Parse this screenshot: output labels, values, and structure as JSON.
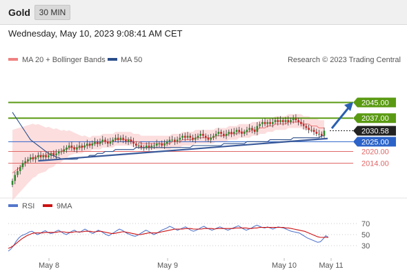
{
  "header": {
    "title": "Gold",
    "timeframe": "30 MIN",
    "datetime": "Wednesday, May 10, 2023 9:08:41 AM CET"
  },
  "colors": {
    "resistance": "#5a9a12",
    "current": "#222222",
    "pivot": "#2c63c9",
    "support": "#e06666",
    "ma20": "#f08080",
    "ma50": "#2a4d8a",
    "bollinger": "#fbd3d3",
    "rsi": "#5577cc",
    "rsi_ma": "#cc1111",
    "candle_up": "#2e8b2e",
    "candle_down": "#c62828"
  },
  "chart_data": [
    {
      "type": "candlestick",
      "legend": [
        {
          "name": "MA 20 + Bollinger Bands",
          "color": "#f08080"
        },
        {
          "name": "MA 50",
          "color": "#2a4d8a"
        }
      ],
      "source": "Research © 2023 Trading Central",
      "x_ticks": [
        "May 8",
        "May 9",
        "May 10",
        "May 11"
      ],
      "levels": [
        {
          "value": 2045.0,
          "label": "2045.00",
          "role": "resistance"
        },
        {
          "value": 2037.0,
          "label": "2037.00",
          "role": "resistance"
        },
        {
          "value": 2030.58,
          "label": "2030.58",
          "role": "current"
        },
        {
          "value": 2025.0,
          "label": "2025.00",
          "role": "pivot"
        },
        {
          "value": 2020.0,
          "label": "2020.00",
          "role": "support"
        },
        {
          "value": 2014.0,
          "label": "2014.00",
          "role": "support"
        }
      ],
      "ylim": [
        1998,
        2048
      ],
      "closes": [
        2005,
        2008,
        2010,
        2012,
        2014,
        2015,
        2016,
        2017,
        2016,
        2017,
        2018,
        2017,
        2018,
        2017,
        2018,
        2019,
        2018,
        2019,
        2020,
        2020,
        2021,
        2022,
        2023,
        2022,
        2021,
        2022,
        2023,
        2022,
        2023,
        2024,
        2023,
        2024,
        2025,
        2024,
        2025,
        2026,
        2025,
        2024,
        2025,
        2026,
        2027,
        2026,
        2027,
        2026,
        2025,
        2026,
        2025,
        2024,
        2023,
        2023,
        2022,
        2022,
        2023,
        2022,
        2023,
        2023,
        2024,
        2024,
        2023,
        2024,
        2025,
        2026,
        2026,
        2025,
        2026,
        2027,
        2028,
        2027,
        2028,
        2027,
        2026,
        2027,
        2028,
        2029,
        2028,
        2027,
        2026,
        2027,
        2028,
        2029,
        2030,
        2029,
        2028,
        2029,
        2030,
        2029,
        2030,
        2031,
        2030,
        2029,
        2030,
        2031,
        2032,
        2031,
        2030,
        2033,
        2034,
        2035,
        2034,
        2035,
        2034,
        2035,
        2036,
        2035,
        2036,
        2035,
        2036,
        2035,
        2036,
        2037,
        2036,
        2035,
        2034,
        2033,
        2032,
        2031,
        2031,
        2030,
        2029,
        2029,
        2028,
        2030.58
      ],
      "ma20": [
        2009,
        2010,
        2011,
        2012,
        2013,
        2014,
        2015,
        2016,
        2017,
        2017,
        2018,
        2018,
        2018,
        2018,
        2019,
        2019,
        2019,
        2020,
        2020,
        2020,
        2021,
        2021,
        2022,
        2022,
        2022,
        2022,
        2022,
        2022,
        2023,
        2023,
        2023,
        2024,
        2024,
        2024,
        2024,
        2025,
        2025,
        2025,
        2025,
        2025,
        2026,
        2026,
        2026,
        2026,
        2026,
        2026,
        2026,
        2025,
        2025,
        2025,
        2024,
        2024,
        2024,
        2024,
        2024,
        2024,
        2024,
        2024,
        2024,
        2024,
        2024,
        2024,
        2025,
        2025,
        2025,
        2025,
        2026,
        2026,
        2026,
        2026,
        2026,
        2027,
        2027,
        2027,
        2027,
        2027,
        2027,
        2027,
        2027,
        2028,
        2028,
        2028,
        2028,
        2028,
        2029,
        2029,
        2029,
        2029,
        2030,
        2030,
        2030,
        2030,
        2030,
        2031,
        2031,
        2031,
        2032,
        2032,
        2032,
        2033,
        2033,
        2033,
        2034,
        2034,
        2034,
        2034,
        2034,
        2035,
        2035,
        2035,
        2035,
        2035,
        2035,
        2034,
        2034,
        2034,
        2033,
        2033,
        2033,
        2032,
        2032,
        2032
      ],
      "ma50": [
        2040,
        2038,
        2036,
        2034,
        2032,
        2030,
        2028,
        2026,
        2025,
        2024,
        2023,
        2022,
        2021,
        2020,
        2019,
        2018,
        2018,
        2017,
        2017,
        2016,
        2016,
        2016,
        2016,
        2016,
        2016,
        2016,
        2017,
        2017,
        2017,
        2017,
        2018,
        2018,
        2018,
        2019,
        2019,
        2019,
        2020,
        2020,
        2020,
        2020,
        2021,
        2021,
        2021,
        2021,
        2021,
        2021,
        2021,
        2021,
        2022,
        2022,
        2022,
        2022,
        2022,
        2022,
        2022,
        2022,
        2022,
        2022,
        2022,
        2022,
        2022,
        2022,
        2022,
        2022,
        2022,
        2022,
        2022,
        2022,
        2022,
        2022,
        2023,
        2023,
        2023,
        2023,
        2023,
        2023,
        2023,
        2023,
        2023,
        2023,
        2023,
        2023,
        2024,
        2024,
        2024,
        2024,
        2024,
        2024,
        2024,
        2024,
        2024,
        2025,
        2025,
        2025,
        2025,
        2025,
        2025,
        2025,
        2025,
        2025,
        2026,
        2026,
        2026,
        2026,
        2026,
        2026,
        2026,
        2026,
        2026,
        2027,
        2027,
        2027,
        2027,
        2027,
        2027,
        2027,
        2027,
        2027,
        2027,
        2027,
        2028,
        2028
      ]
    },
    {
      "type": "line",
      "legend": [
        {
          "name": "RSI",
          "color": "#5577cc"
        },
        {
          "name": "9MA",
          "color": "#cc1111"
        }
      ],
      "y_ticks": [
        70,
        50,
        30
      ],
      "ylim": [
        10,
        80
      ],
      "rsi": [
        20,
        24,
        30,
        38,
        44,
        48,
        50,
        52,
        55,
        56,
        53,
        50,
        52,
        55,
        57,
        54,
        52,
        53,
        56,
        58,
        55,
        52,
        50,
        53,
        56,
        58,
        55,
        54,
        57,
        60,
        57,
        54,
        52,
        55,
        58,
        56,
        53,
        50,
        48,
        51,
        54,
        57,
        60,
        58,
        55,
        52,
        50,
        48,
        47,
        49,
        52,
        55,
        58,
        56,
        53,
        50,
        52,
        55,
        58,
        60,
        62,
        65,
        63,
        60,
        58,
        60,
        62,
        64,
        61,
        58,
        56,
        58,
        60,
        63,
        65,
        62,
        60,
        58,
        60,
        62,
        64,
        62,
        60,
        58,
        60,
        62,
        64,
        66,
        63,
        60,
        58,
        60,
        62,
        65,
        67,
        65,
        63,
        62,
        64,
        62,
        60,
        62,
        64,
        63,
        62,
        60,
        58,
        56,
        55,
        54,
        53,
        50,
        47,
        44,
        42,
        40,
        38,
        36,
        37,
        42,
        48,
        45
      ],
      "rsi_ma": [
        25,
        27,
        30,
        34,
        38,
        42,
        45,
        48,
        50,
        52,
        53,
        53,
        53,
        53,
        54,
        54,
        54,
        54,
        54,
        55,
        55,
        55,
        54,
        54,
        54,
        55,
        55,
        55,
        55,
        56,
        56,
        56,
        55,
        55,
        56,
        56,
        55,
        54,
        53,
        52,
        52,
        53,
        54,
        55,
        55,
        54,
        53,
        52,
        51,
        50,
        50,
        51,
        52,
        53,
        53,
        53,
        53,
        54,
        55,
        56,
        57,
        58,
        59,
        60,
        60,
        60,
        60,
        61,
        61,
        61,
        60,
        60,
        60,
        60,
        61,
        61,
        61,
        61,
        60,
        61,
        61,
        61,
        61,
        61,
        61,
        61,
        62,
        62,
        62,
        62,
        62,
        61,
        61,
        62,
        62,
        63,
        63,
        63,
        63,
        63,
        63,
        63,
        63,
        63,
        63,
        62,
        62,
        61,
        60,
        59,
        58,
        57,
        56,
        54,
        52,
        50,
        48,
        46,
        45,
        45,
        45,
        45
      ]
    }
  ]
}
